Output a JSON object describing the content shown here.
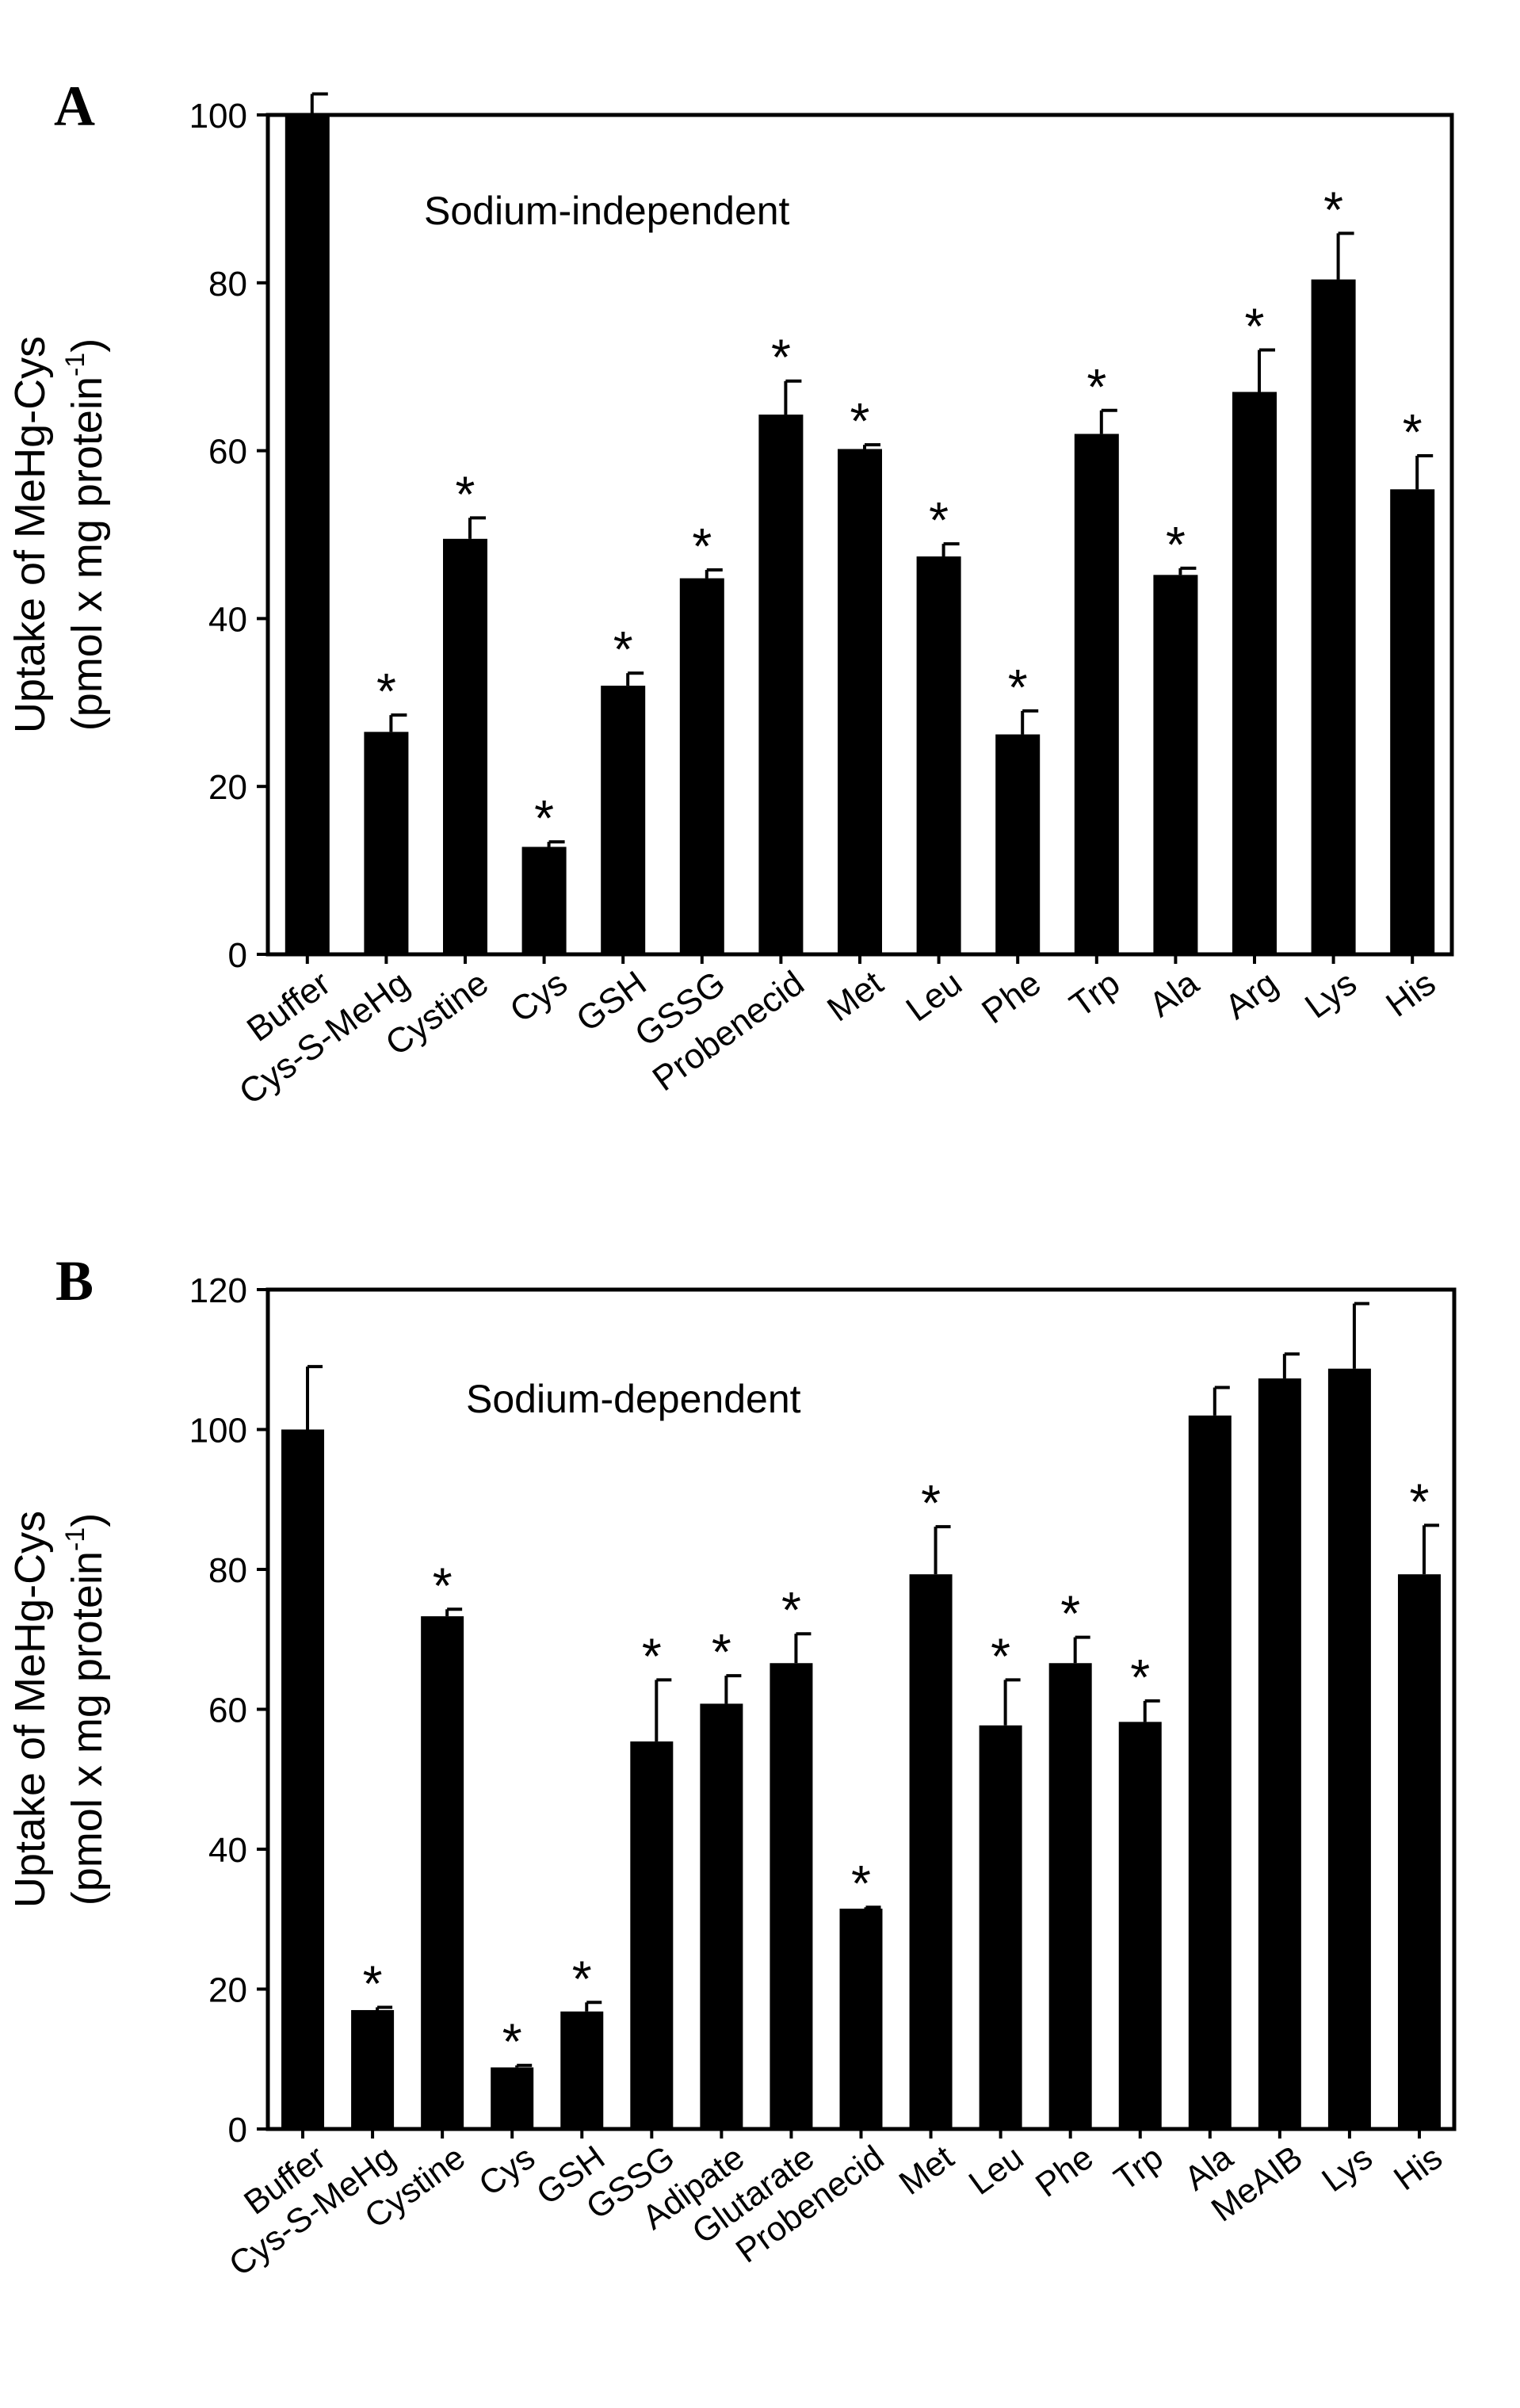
{
  "chart_data": [
    {
      "panel": "A",
      "type": "bar",
      "annotation": "Sodium-independent",
      "ylabel_line1": "Uptake of MeHg-Cys",
      "ylabel_line2_prefix": "(pmol x mg protein",
      "ylabel_line2_superscript": "-1",
      "ylabel_line2_suffix": ")",
      "ylim": [
        0,
        100
      ],
      "yticks": [
        0,
        20,
        40,
        60,
        80,
        100
      ],
      "categories": [
        "Buffer",
        "Cys-S-MeHg",
        "Cystine",
        "Cys",
        "GSH",
        "GSSG",
        "Probenecid",
        "Met",
        "Leu",
        "Phe",
        "Trp",
        "Ala",
        "Arg",
        "Lys",
        "His"
      ],
      "values": [
        100,
        26.5,
        49.5,
        12.8,
        32,
        44.8,
        64.3,
        60.2,
        47.4,
        26.2,
        62,
        45.2,
        67,
        80.4,
        55.4
      ],
      "errors": [
        2.5,
        2,
        2.5,
        0.6,
        1.5,
        1,
        4,
        0.5,
        1.5,
        2.8,
        2.8,
        0.8,
        5,
        5.5,
        4
      ],
      "significant": [
        false,
        true,
        true,
        true,
        true,
        true,
        true,
        true,
        true,
        true,
        true,
        true,
        true,
        true,
        true
      ],
      "marker": "*"
    },
    {
      "panel": "B",
      "type": "bar",
      "annotation": "Sodium-dependent",
      "ylabel_line1": "Uptake of MeHg-Cys",
      "ylabel_line2_prefix": "(pmol x mg protein",
      "ylabel_line2_superscript": "-1",
      "ylabel_line2_suffix": ")",
      "ylim": [
        0,
        120
      ],
      "yticks": [
        0,
        20,
        40,
        60,
        80,
        100,
        120
      ],
      "categories": [
        "Buffer",
        "Cys-S-MeHg",
        "Cystine",
        "Cys",
        "GSH",
        "GSSG",
        "Adipate",
        "Glutarate",
        "Probenecid",
        "Met",
        "Leu",
        "Phe",
        "Trp",
        "Ala",
        "MeAIB",
        "Lys",
        "His"
      ],
      "values": [
        100,
        17,
        73.3,
        8.8,
        16.8,
        55.4,
        60.8,
        66.6,
        31.5,
        79.3,
        57.7,
        66.6,
        58.2,
        102,
        107.3,
        108.7,
        79.3
      ],
      "errors": [
        9,
        0.4,
        1,
        0.3,
        1.3,
        8.8,
        4,
        4.2,
        0.2,
        6.8,
        6.5,
        3.7,
        3,
        4,
        3.5,
        9.3,
        7
      ],
      "significant": [
        false,
        true,
        true,
        true,
        true,
        true,
        true,
        true,
        true,
        true,
        true,
        true,
        true,
        false,
        false,
        false,
        true
      ],
      "marker": "*"
    }
  ]
}
